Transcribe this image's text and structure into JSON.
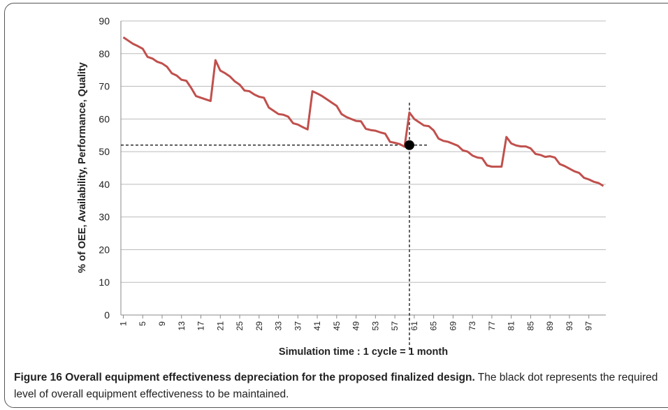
{
  "chart_data": {
    "type": "line",
    "x": [
      1,
      2,
      3,
      4,
      5,
      6,
      7,
      8,
      9,
      10,
      11,
      12,
      13,
      14,
      15,
      16,
      17,
      18,
      19,
      20,
      21,
      22,
      23,
      24,
      25,
      26,
      27,
      28,
      29,
      30,
      31,
      32,
      33,
      34,
      35,
      36,
      37,
      38,
      39,
      40,
      41,
      42,
      43,
      44,
      45,
      46,
      47,
      48,
      49,
      50,
      51,
      52,
      53,
      54,
      55,
      56,
      57,
      58,
      59,
      60,
      61,
      62,
      63,
      64,
      65,
      66,
      67,
      68,
      69,
      70,
      71,
      72,
      73,
      74,
      75,
      76,
      77,
      78,
      79,
      80,
      81,
      82,
      83,
      84,
      85,
      86,
      87,
      88,
      89,
      90,
      91,
      92,
      93,
      94,
      95,
      96,
      97,
      98,
      99,
      100
    ],
    "series": [
      {
        "color": "#c0504d",
        "values": [
          85,
          84,
          83,
          82.3,
          81.5,
          79,
          78.5,
          77.5,
          77,
          76,
          74,
          73.3,
          72,
          71.7,
          69.5,
          67,
          66.5,
          66,
          65.5,
          78,
          74.8,
          74,
          73,
          71.5,
          70.5,
          68.7,
          68.5,
          67.5,
          66.8,
          66.5,
          63.5,
          62.5,
          61.5,
          61.3,
          60.7,
          58.7,
          58.3,
          57.5,
          56.8,
          68.5,
          67.8,
          67,
          66,
          65,
          64,
          61.5,
          60.6,
          60,
          59.4,
          59.3,
          57,
          56.6,
          56.4,
          55.9,
          55.5,
          53,
          52.7,
          52.3,
          51.5,
          62,
          60,
          59,
          58,
          57.8,
          56.5,
          54,
          53.3,
          53,
          52.4,
          51.8,
          50.4,
          50,
          48.8,
          48.2,
          48,
          45.8,
          45.4,
          45.4,
          45.4,
          54.5,
          52.5,
          51.9,
          51.6,
          51.6,
          51,
          49.3,
          49,
          48.4,
          48.6,
          48.2,
          46.2,
          45.6,
          44.8,
          44,
          43.5,
          42,
          41.5,
          40.8,
          40.4,
          39.5
        ]
      }
    ],
    "xlim": [
      0.5,
      100.5
    ],
    "xticks": [
      1,
      5,
      9,
      13,
      17,
      21,
      25,
      29,
      33,
      37,
      41,
      45,
      49,
      53,
      57,
      61,
      65,
      69,
      73,
      77,
      81,
      85,
      89,
      93,
      97
    ],
    "ylim": [
      0,
      90
    ],
    "yticks": [
      0,
      10,
      20,
      30,
      40,
      50,
      60,
      70,
      80,
      90
    ],
    "grid": true,
    "x_label": "Simulation time  : 1 cycle = 1 month",
    "y_label": "% of OEE, Availability, Performance, Quality",
    "reference_point": {
      "x": 60,
      "y": 52
    }
  },
  "caption": {
    "title": "Figure 16 Overall equipment effectiveness depreciation for the proposed finalized design.",
    "text": "The black dot represents the required level of overall equipment effectiveness to be maintained."
  }
}
